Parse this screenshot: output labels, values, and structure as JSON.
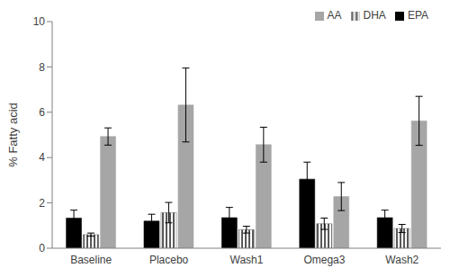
{
  "chart_data": {
    "type": "bar",
    "categories": [
      "Baseline",
      "Placebo",
      "Wash1",
      "Omega3",
      "Wash2"
    ],
    "series": [
      {
        "name": "EPA",
        "color": "#000000",
        "values": [
          1.33,
          1.2,
          1.35,
          3.05,
          1.35
        ],
        "errors": [
          0.35,
          0.3,
          0.45,
          0.75,
          0.33
        ]
      },
      {
        "name": "DHA",
        "color": "#595959",
        "values": [
          0.6,
          1.57,
          0.82,
          1.08,
          0.87
        ],
        "errors": [
          0.07,
          0.45,
          0.15,
          0.25,
          0.18
        ]
      },
      {
        "name": "AA",
        "color": "#a6a6a6",
        "values": [
          4.93,
          6.32,
          4.57,
          2.28,
          5.62
        ],
        "errors": [
          0.38,
          1.63,
          0.77,
          0.62,
          1.08
        ]
      }
    ],
    "y_label": "% Fatty acid",
    "ylim": [
      0,
      10
    ],
    "yticks": [
      0,
      2,
      4,
      6,
      8,
      10
    ],
    "grid": false,
    "legend": "upper right"
  }
}
